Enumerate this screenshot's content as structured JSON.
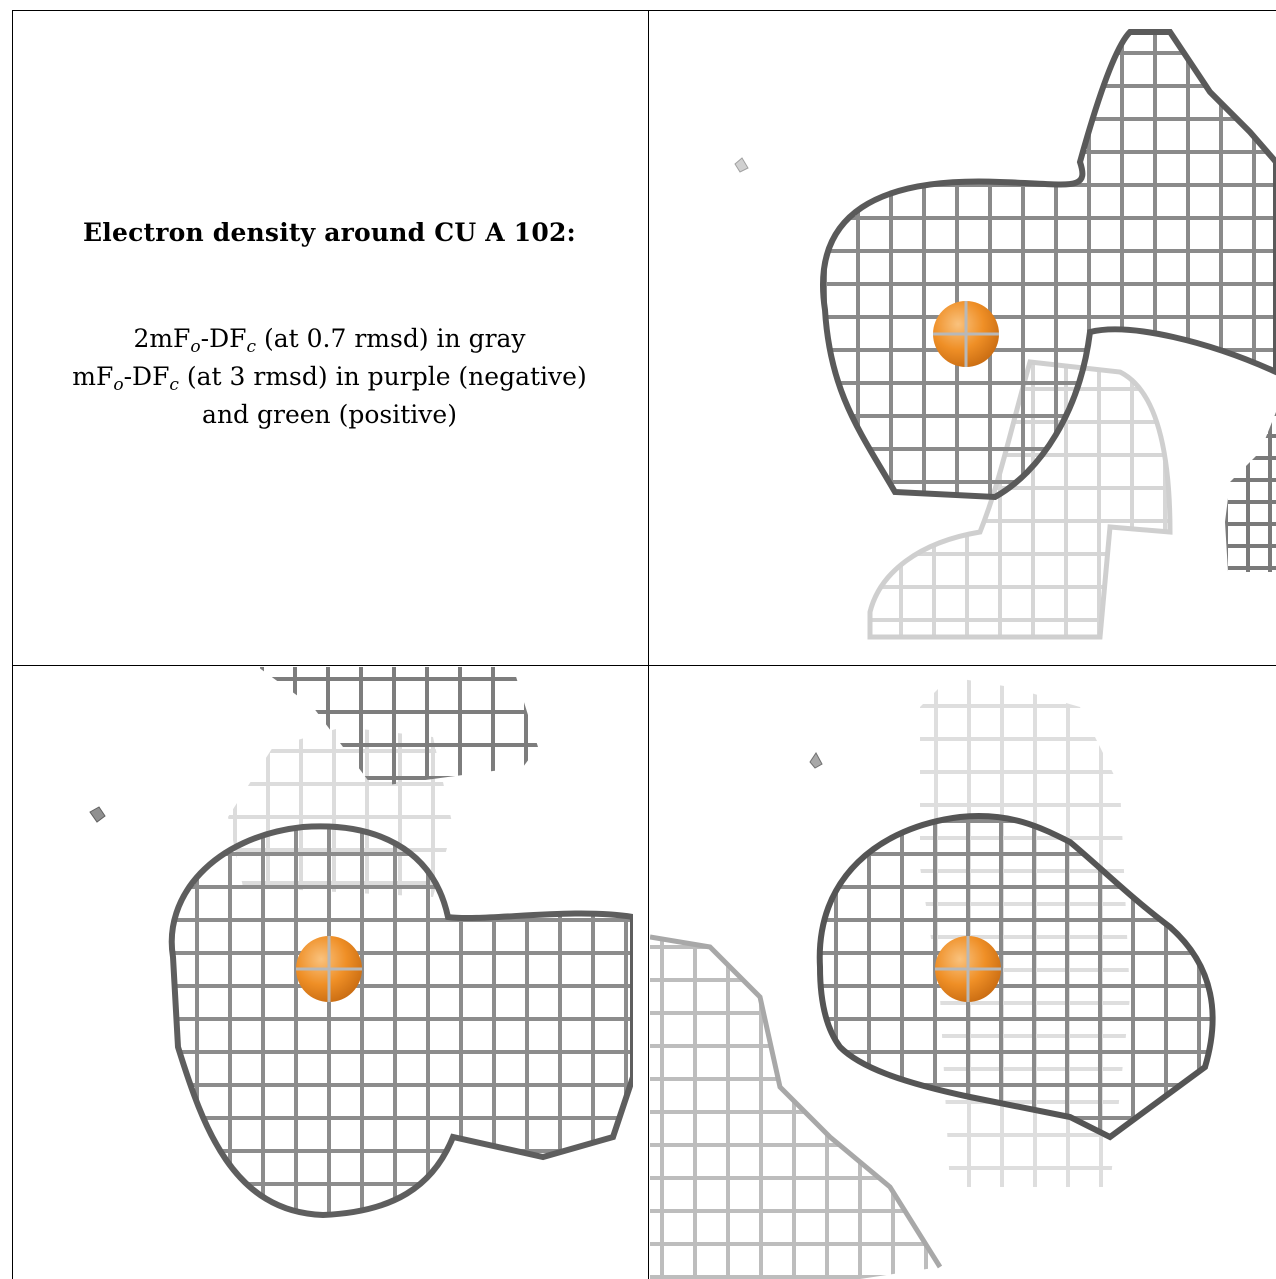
{
  "caption": {
    "title": "Electron density around CU A 102:",
    "line1": {
      "a": "2mF",
      "sub1": "o",
      "b": "-DF",
      "sub2": "c",
      "c": " (at 0.7 rmsd) in gray"
    },
    "line2": {
      "a": "mF",
      "sub1": "o",
      "b": "-DF",
      "sub2": "c",
      "c": " (at 3 rmsd) in purple (negative)"
    },
    "line3": "and green (positive)"
  },
  "colors": {
    "mesh_dark": "#505050",
    "mesh_mid": "#8c8c8c",
    "mesh_light": "#c8c8c8",
    "mesh_faint": "#e2e2e2",
    "atom": "#ef8f26",
    "atom_highlight": "#f9c27e",
    "border": "#000000"
  },
  "views": [
    {
      "name": "view-top-right",
      "atom": "CU A 102"
    },
    {
      "name": "view-bottom-left",
      "atom": "CU A 102"
    },
    {
      "name": "view-bottom-right",
      "atom": "CU A 102"
    }
  ]
}
